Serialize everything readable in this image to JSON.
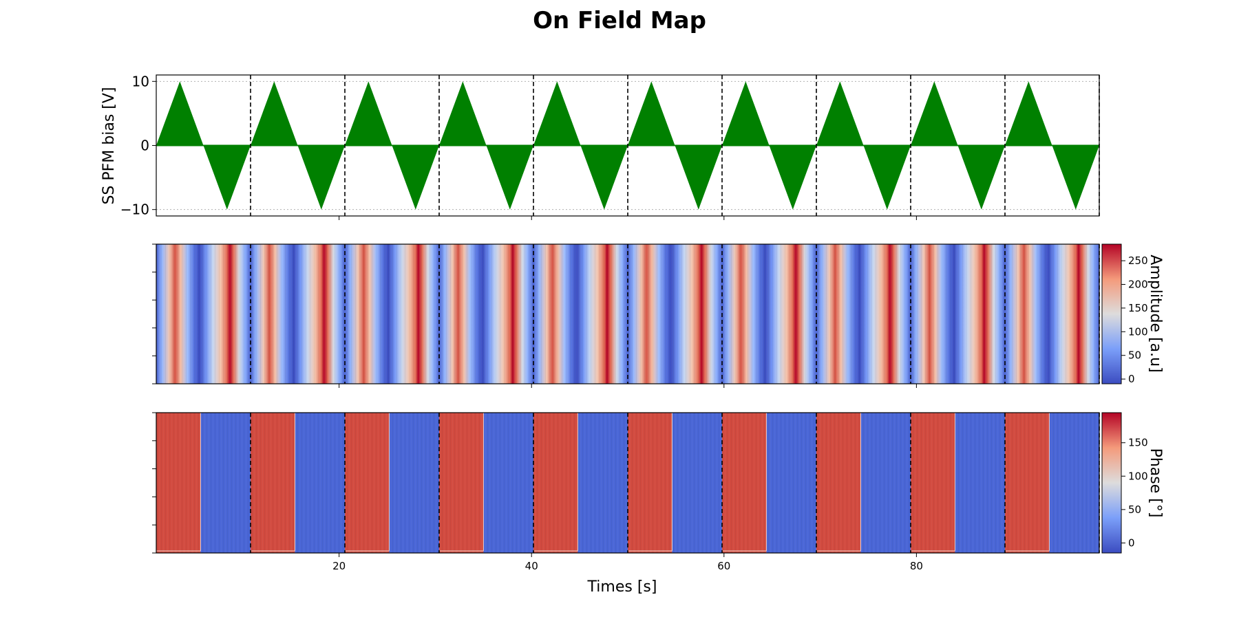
{
  "title": "On Field Map",
  "chart_data": [
    {
      "type": "area",
      "panel": "bias",
      "ylabel": "SS PFM bias [V]",
      "ylim": [
        -11,
        11
      ],
      "yticks": [
        -10,
        0,
        10
      ],
      "xlim": [
        1,
        99
      ],
      "cycle_count": 10,
      "cycle_period": 9.8,
      "amplitude": 10,
      "fill_color": "#008000",
      "grid": "dotted",
      "cycle_boundaries": [
        10.8,
        20.6,
        30.4,
        40.2,
        50.0,
        59.8,
        69.6,
        79.4,
        89.2,
        99.0
      ]
    },
    {
      "type": "heatmap",
      "panel": "amplitude",
      "colormap": "coolwarm",
      "colorbar_label": "Amplitude [a.u]",
      "colorbar_ticks": [
        0,
        50,
        100,
        150,
        200,
        250
      ],
      "clim": [
        -10,
        285
      ],
      "xlim": [
        1,
        99
      ]
    },
    {
      "type": "heatmap",
      "panel": "phase",
      "colormap": "coolwarm",
      "colorbar_label": "Phase [°]",
      "colorbar_ticks": [
        0,
        50,
        100,
        150
      ],
      "clim": [
        -15,
        195
      ],
      "high_value": 180,
      "low_value": 0,
      "xlim": [
        1,
        99
      ],
      "xticks": [
        20,
        40,
        60,
        80
      ],
      "xlabel": "Times [s]"
    }
  ]
}
